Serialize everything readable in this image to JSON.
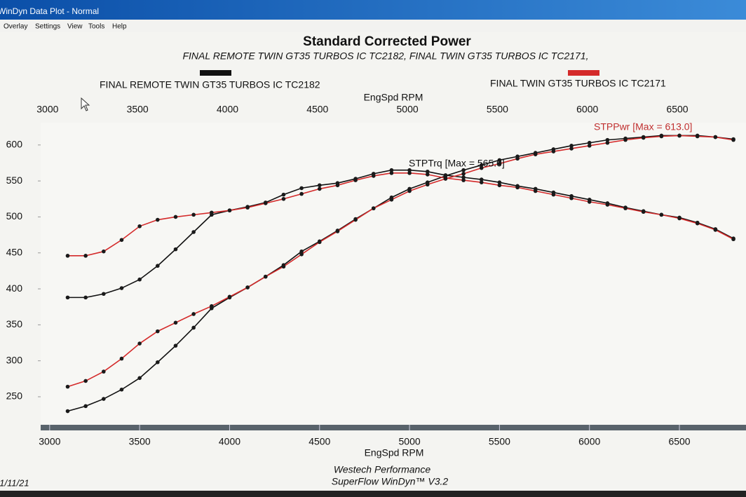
{
  "window": {
    "title": "WinDyn Data Plot - Normal",
    "menu": [
      "Overlay",
      "Settings",
      "View",
      "Tools",
      "Help"
    ]
  },
  "footer": {
    "company": "Westech Performance",
    "software": "SuperFlow WinDyn™ V3.2",
    "date": "01/11/21"
  },
  "chart_data": {
    "type": "line",
    "title": "Standard Corrected Power",
    "subtitle": "FINAL REMOTE TWIN GT35 TURBOS IC TC2182, FINAL TWIN GT35 TURBOS IC TC2171,",
    "x_label": "EngSpd RPM",
    "x": [
      3100,
      3200,
      3300,
      3400,
      3500,
      3600,
      3700,
      3800,
      3900,
      4000,
      4100,
      4200,
      4300,
      4400,
      4500,
      4600,
      4700,
      4800,
      4900,
      5000,
      5100,
      5200,
      5300,
      5400,
      5500,
      5600,
      5700,
      5800,
      5900,
      6000,
      6100,
      6200,
      6300,
      6400,
      6500,
      6600,
      6700,
      6800
    ],
    "series": [
      {
        "name": "FINAL REMOTE TWIN GT35 TURBOS IC TC2182",
        "color": "#111111",
        "torque": [
          388,
          388,
          393,
          401,
          413,
          432,
          455,
          479,
          503,
          509,
          514,
          520,
          531,
          540,
          544,
          547,
          553,
          560,
          565,
          565,
          563,
          558,
          555,
          552,
          548,
          543,
          539,
          534,
          529,
          524,
          519,
          513,
          508,
          503,
          499,
          492,
          483,
          470
        ],
        "power": [
          230,
          237,
          247,
          260,
          276,
          298,
          321,
          346,
          373,
          388,
          402,
          417,
          433,
          452,
          466,
          481,
          497,
          512,
          527,
          539,
          548,
          557,
          565,
          572,
          579,
          584,
          589,
          594,
          599,
          603,
          607,
          609,
          611,
          613,
          613,
          613,
          611,
          608
        ]
      },
      {
        "name": "FINAL TWIN GT35 TURBOS IC TC2171",
        "color": "#d42a2a",
        "torque": [
          446,
          446,
          452,
          468,
          487,
          496,
          500,
          503,
          506,
          509,
          513,
          519,
          525,
          532,
          539,
          544,
          551,
          557,
          561,
          561,
          559,
          554,
          551,
          548,
          544,
          541,
          536,
          531,
          526,
          521,
          517,
          512,
          507,
          503,
          498,
          491,
          482,
          469
        ],
        "power": [
          264,
          272,
          285,
          303,
          324,
          341,
          353,
          365,
          376,
          389,
          402,
          417,
          431,
          448,
          465,
          480,
          496,
          512,
          524,
          536,
          545,
          553,
          560,
          568,
          574,
          581,
          587,
          591,
          595,
          599,
          603,
          607,
          610,
          612,
          613,
          612,
          611,
          607
        ]
      }
    ],
    "annotations": [
      {
        "text": "STPTrq [Max = 565.0]",
        "color": "#111111"
      },
      {
        "text": "STPPwr [Max = 613.0]",
        "color": "#c03030"
      }
    ],
    "xlim": [
      2950,
      6870
    ],
    "xticks": [
      3000,
      3500,
      4000,
      4500,
      5000,
      5500,
      6000,
      6500
    ],
    "ylim": [
      212,
      631
    ],
    "yticks": [
      250,
      300,
      350,
      400,
      450,
      500,
      550,
      600
    ],
    "grid": false
  }
}
